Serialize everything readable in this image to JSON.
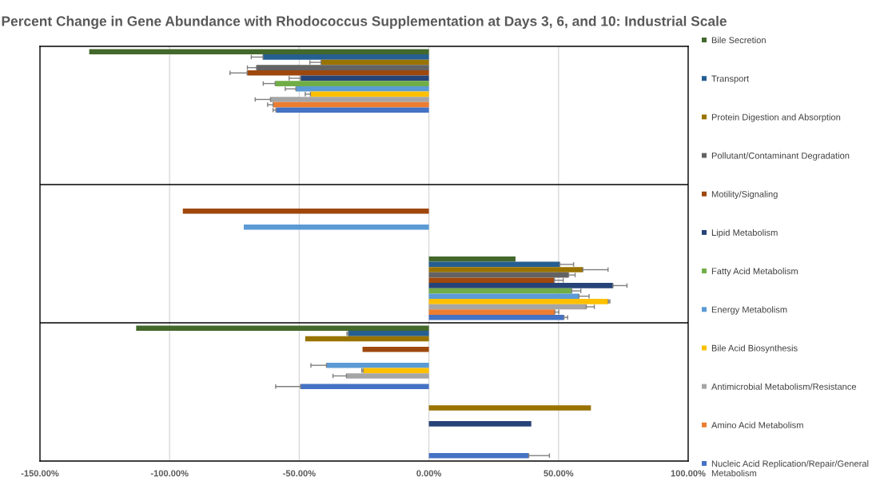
{
  "chart_data": {
    "type": "bar",
    "orientation": "horizontal",
    "title": "Percent Change in Gene Abundance with Rhodococcus Supplementation at Days 3, 6, and 10: Industrial Scale",
    "categories": [
      null,
      null,
      null,
      null,
      null,
      null
    ],
    "xlim": [
      -150,
      100
    ],
    "xticks": [
      {
        "value": -150,
        "label": "-150.00%"
      },
      {
        "value": -100,
        "label": "-100.00%"
      },
      {
        "value": -50,
        "label": "-50.00%"
      },
      {
        "value": 0,
        "label": "0.00%"
      },
      {
        "value": 50,
        "label": "50.00%"
      },
      {
        "value": 100,
        "label": "100.00%"
      }
    ],
    "grid": "x",
    "legend": "right",
    "series": [
      {
        "name": "Bile Secretion",
        "color": "#43682b",
        "values": [
          -131,
          null,
          null,
          33.4,
          -112.9,
          null
        ],
        "errors": [
          null,
          null,
          null,
          null,
          null,
          null
        ]
      },
      {
        "name": "Transport",
        "color": "#255e91",
        "values": [
          -64,
          null,
          null,
          50.5,
          -31.1,
          null
        ],
        "errors": [
          4.5,
          null,
          null,
          5.3,
          0.5,
          null
        ]
      },
      {
        "name": "Protein Digestion and Absorption",
        "color": "#997300",
        "values": [
          -41.6,
          null,
          null,
          59.4,
          -47.7,
          62.5
        ],
        "errors": [
          4.3,
          null,
          null,
          9.7,
          null,
          null
        ]
      },
      {
        "name": "Pollutant/Contaminant Degradation",
        "color": "#636363",
        "values": [
          -66.5,
          null,
          null,
          53.9,
          null,
          null
        ],
        "errors": [
          3.5,
          null,
          null,
          2.5,
          null,
          null
        ]
      },
      {
        "name": "Motility/Signaling",
        "color": "#9e480e",
        "values": [
          -70.1,
          null,
          -94.9,
          48.4,
          -25.6,
          null
        ],
        "errors": [
          6.6,
          null,
          null,
          3.4,
          null,
          null
        ]
      },
      {
        "name": "Lipid Metabolism",
        "color": "#264478",
        "values": [
          -49.5,
          null,
          null,
          71,
          null,
          39.5
        ],
        "errors": [
          4.4,
          null,
          null,
          5.4,
          null,
          null
        ]
      },
      {
        "name": "Fatty Acid Metabolism",
        "color": "#70ad47",
        "values": [
          -59.3,
          null,
          null,
          55.1,
          null,
          null
        ],
        "errors": [
          4.6,
          null,
          null,
          3.5,
          null,
          null
        ]
      },
      {
        "name": "Energy Metabolism",
        "color": "#5b9bd5",
        "values": [
          -51.3,
          null,
          -71.4,
          57.9,
          -39.5,
          null
        ],
        "errors": [
          4.1,
          null,
          null,
          3.9,
          6,
          null
        ]
      },
      {
        "name": "Bile Acid Biosynthesis",
        "color": "#ffc000",
        "values": [
          -45.7,
          null,
          null,
          69.2,
          -25.4,
          null
        ],
        "errors": [
          2,
          null,
          null,
          0.6,
          0.5,
          null
        ]
      },
      {
        "name": "Antimicrobial Metabolism/Resistance",
        "color": "#a5a5a5",
        "values": [
          -61.1,
          null,
          null,
          60.7,
          -31.8,
          null
        ],
        "errors": [
          5.9,
          null,
          null,
          3.1,
          5.2,
          null
        ]
      },
      {
        "name": "Amino Acid Metabolism",
        "color": "#ed7d31",
        "values": [
          -60.1,
          null,
          null,
          48.6,
          null,
          null
        ],
        "errors": [
          2.1,
          null,
          null,
          1.5,
          null,
          null
        ]
      },
      {
        "name": "Nucleic Acid Replication/Repair/General Metabolism",
        "color": "#4472c4",
        "values": [
          -59,
          null,
          null,
          52.1,
          -49.5,
          38.5
        ],
        "errors": [
          1.1,
          null,
          null,
          1.4,
          9.6,
          8
        ]
      }
    ]
  }
}
